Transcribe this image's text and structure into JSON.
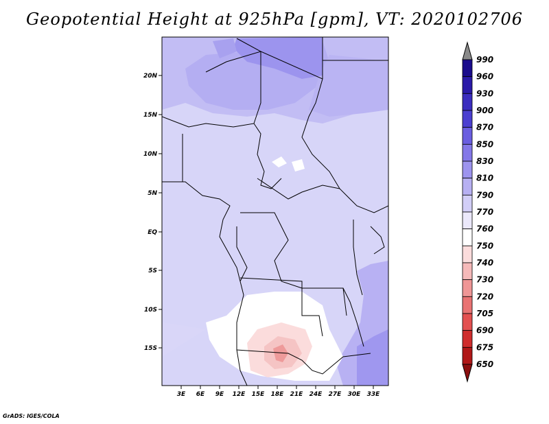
{
  "title": "Geopotential Height at 925hPa [gpm], VT: 2020102706",
  "footer": "GrADS: IGES/COLA",
  "map": {
    "lat_labels": [
      "20N",
      "15N",
      "10N",
      "5N",
      "EQ",
      "5S",
      "10S",
      "15S"
    ],
    "lon_labels": [
      "3E",
      "6E",
      "9E",
      "12E",
      "15E",
      "18E",
      "21E",
      "24E",
      "27E",
      "30E",
      "33E"
    ]
  },
  "colorbar": {
    "labels": [
      "990",
      "960",
      "930",
      "900",
      "870",
      "850",
      "830",
      "810",
      "790",
      "770",
      "760",
      "750",
      "740",
      "730",
      "720",
      "705",
      "690",
      "675",
      "650"
    ],
    "colors": [
      "#8a8a8a",
      "#1a0b8c",
      "#2a1aa8",
      "#3b2dbf",
      "#4b3fd0",
      "#6a5ee0",
      "#8478e8",
      "#9d94ee",
      "#b7b0f2",
      "#d2cef7",
      "#ebe8fb",
      "#ffffff",
      "#fbdcdc",
      "#f5b9b9",
      "#ef9696",
      "#e97373",
      "#e35050",
      "#cf2d2d",
      "#b01818",
      "#8b0f0f"
    ]
  }
}
